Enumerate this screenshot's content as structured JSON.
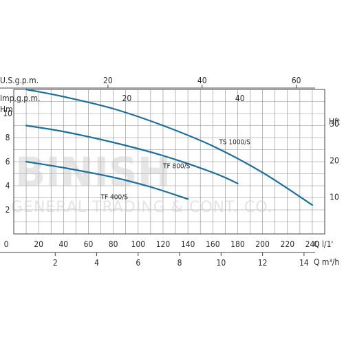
{
  "chart_data": {
    "type": "line",
    "axes": {
      "q_ls": {
        "ticks": [
          "0",
          "20",
          "40",
          "60",
          "80",
          "100",
          "120",
          "140",
          "160",
          "180",
          "200",
          "220",
          "240"
        ],
        "label": "Q l/1'",
        "range": [
          0,
          250
        ]
      },
      "q_m3h": {
        "ticks": [
          "2",
          "4",
          "6",
          "8",
          "10",
          "12",
          "14"
        ],
        "label": "Q m³/h"
      },
      "us_gpm": {
        "label": "U.S.g.p.m.",
        "ticks": [
          "20",
          "40",
          "60"
        ]
      },
      "imp_gpm": {
        "label": "Imp.g.p.m.",
        "ticks": [
          "20",
          "40"
        ]
      },
      "head_m": {
        "label": "Hm",
        "ticks": [
          "2",
          "4",
          "6",
          "8",
          "10"
        ],
        "range": [
          0,
          12
        ]
      },
      "head_ft": {
        "label": "Hft",
        "ticks": [
          "10",
          "20",
          "30"
        ]
      }
    },
    "series": [
      {
        "name": "TS 1000/S",
        "x": [
          10,
          40,
          80,
          120,
          160,
          200,
          240
        ],
        "y": [
          12.0,
          11.4,
          10.4,
          9.0,
          7.3,
          5.1,
          2.4
        ],
        "label_at": [
          165,
          7.45
        ]
      },
      {
        "name": "TF 800/S",
        "x": [
          10,
          40,
          80,
          120,
          160,
          180
        ],
        "y": [
          9.0,
          8.5,
          7.6,
          6.5,
          5.1,
          4.2
        ],
        "label_at": [
          120,
          5.45
        ]
      },
      {
        "name": "TF 400/S",
        "x": [
          10,
          40,
          80,
          110,
          140
        ],
        "y": [
          6.0,
          5.5,
          4.7,
          3.9,
          2.9
        ],
        "label_at": [
          70,
          2.9
        ]
      }
    ],
    "grid": true
  },
  "watermark": {
    "big": "BINISH",
    "small": "GENERAL TRADING & CONT. CO."
  },
  "colors": {
    "curve": "#1a6fa0",
    "grid": "#8a8a8a",
    "frame": "#444444"
  }
}
